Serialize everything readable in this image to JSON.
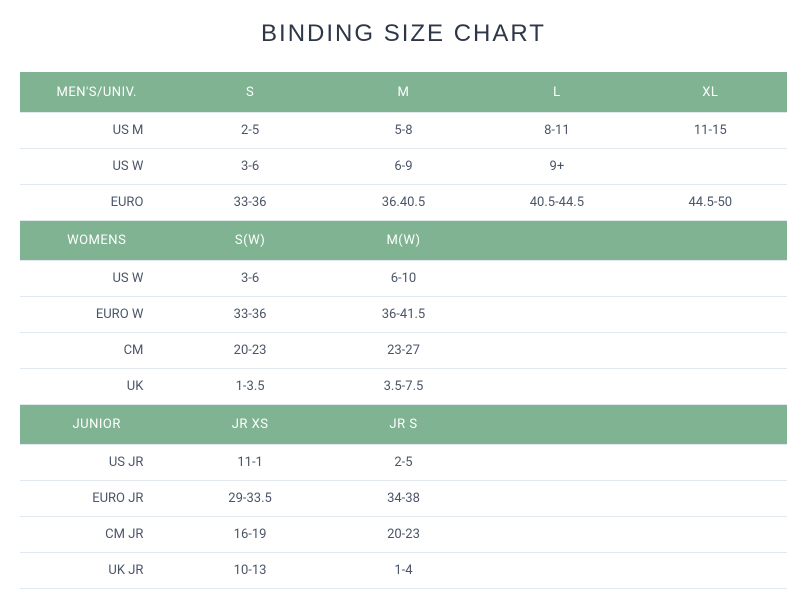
{
  "title": "BINDING SIZE CHART",
  "table": {
    "type": "table",
    "header_bg_color": "#7fb392",
    "header_text_color": "#ffffff",
    "data_text_color": "#4a5568",
    "border_color": "#e2e8f0",
    "background_color": "#ffffff",
    "title_fontsize": 24,
    "cell_fontsize": 13,
    "columns_count": 5,
    "sections": [
      {
        "header": [
          "MEN'S/UNIV.",
          "S",
          "M",
          "L",
          "XL"
        ],
        "rows": [
          [
            "US M",
            "2-5",
            "5-8",
            "8-11",
            "11-15"
          ],
          [
            "US W",
            "3-6",
            "6-9",
            "9+",
            ""
          ],
          [
            "EURO",
            "33-36",
            "36.40.5",
            "40.5-44.5",
            "44.5-50"
          ]
        ]
      },
      {
        "header": [
          "WOMENS",
          "S(W)",
          "M(W)",
          "",
          ""
        ],
        "rows": [
          [
            "US W",
            "3-6",
            "6-10",
            "",
            ""
          ],
          [
            "EURO W",
            "33-36",
            "36-41.5",
            "",
            ""
          ],
          [
            "CM",
            "20-23",
            "23-27",
            "",
            ""
          ],
          [
            "UK",
            "1-3.5",
            "3.5-7.5",
            "",
            ""
          ]
        ]
      },
      {
        "header": [
          "JUNIOR",
          "JR XS",
          "JR S",
          "",
          ""
        ],
        "rows": [
          [
            "US JR",
            "11-1",
            "2-5",
            "",
            ""
          ],
          [
            "EURO JR",
            "29-33.5",
            "34-38",
            "",
            ""
          ],
          [
            "CM JR",
            "16-19",
            "20-23",
            "",
            ""
          ],
          [
            "UK JR",
            "10-13",
            "1-4",
            "",
            ""
          ]
        ]
      }
    ]
  }
}
